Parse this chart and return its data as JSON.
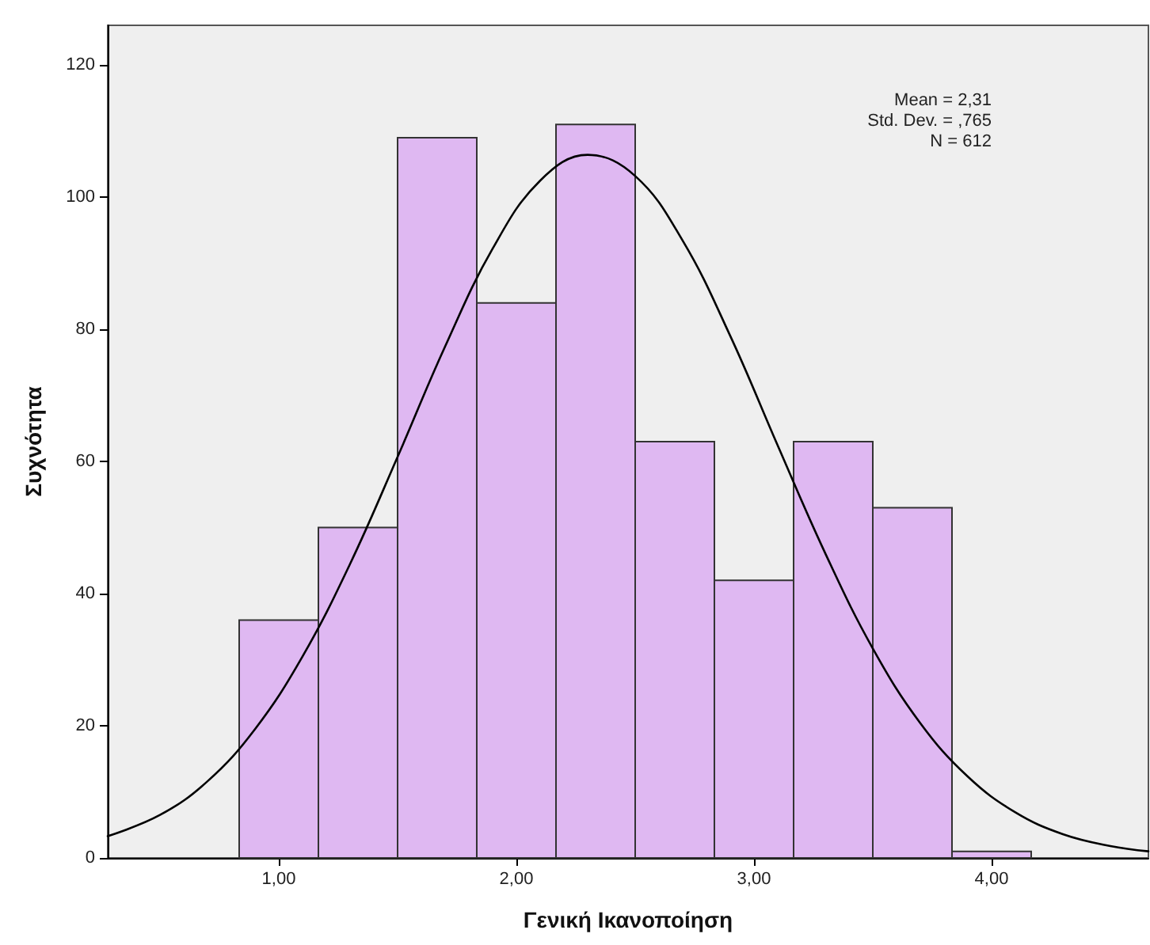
{
  "chart_data": {
    "type": "histogram",
    "xlabel": "Γενική Ικανοποίηση",
    "ylabel": "Συχνότητα",
    "bins": [
      0.8333,
      1.1667,
      1.5,
      1.8333,
      2.1667,
      2.5,
      2.8333,
      3.1667,
      3.5,
      3.8333,
      4.1667
    ],
    "values": [
      36,
      50,
      109,
      84,
      111,
      63,
      42,
      63,
      53,
      1
    ],
    "color": "#dfb8f2",
    "series": [
      {
        "type": "line",
        "color": "#000000",
        "x": [
          0.28,
          0.5,
          0.7,
          0.9,
          1.1,
          1.3,
          1.5,
          1.7,
          1.9,
          2.1,
          2.3,
          2.5,
          2.7,
          2.9,
          3.1,
          3.3,
          3.5,
          3.7,
          3.9,
          4.1,
          4.3,
          4.5,
          4.66
        ],
        "values": [
          3.3,
          6.5,
          11.6,
          19.5,
          30.5,
          44.5,
          60.7,
          77.4,
          92.2,
          102.5,
          106.4,
          103.2,
          93.4,
          79.0,
          62.4,
          46.1,
          31.7,
          20.4,
          12.3,
          6.9,
          3.6,
          1.8,
          1.0
        ]
      }
    ],
    "annotations": [
      "Mean = 2,31",
      "Std. Dev. = ,765",
      "N = 612"
    ],
    "xlim": [
      0.28,
      4.66
    ],
    "xticks": [
      {
        "value": 1,
        "label": "1,00"
      },
      {
        "value": 2,
        "label": "2,00"
      },
      {
        "value": 3,
        "label": "3,00"
      },
      {
        "value": 4,
        "label": "4,00"
      }
    ],
    "ylim": [
      0,
      126
    ],
    "yticks": [
      0,
      20,
      40,
      60,
      80,
      100,
      120
    ],
    "grid": false,
    "legend": false,
    "marker": "none",
    "line_style": "solid"
  }
}
